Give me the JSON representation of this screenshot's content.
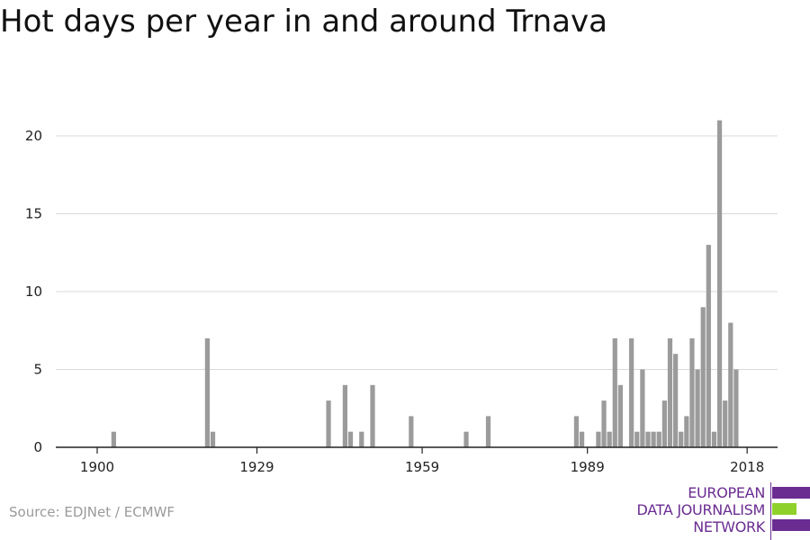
{
  "title": "Hot days per year in and around Trnava",
  "source": "Source: EDJNet / ECMWF",
  "logo": {
    "lines": [
      "EUROPEAN",
      "DATA JOURNALISM",
      "NETWORK"
    ],
    "colors": {
      "purple": "#6a2c91",
      "green": "#8fd12b"
    }
  },
  "colors": {
    "bar": "#9b9b9b",
    "grid": "#d9d9d9",
    "axis": "#222222",
    "text": "#222222"
  },
  "chart_data": {
    "type": "bar",
    "title": "Hot days per year in and around Trnava",
    "xlabel": "",
    "ylabel": "",
    "xlim": [
      1899,
      2020
    ],
    "ylim": [
      0,
      21
    ],
    "x_ticks": [
      1900,
      1929,
      1959,
      1989,
      2018
    ],
    "y_ticks": [
      0,
      5,
      10,
      15,
      20
    ],
    "grid": true,
    "years": [
      1903,
      1920,
      1921,
      1942,
      1945,
      1946,
      1948,
      1950,
      1957,
      1967,
      1971,
      1987,
      1988,
      1991,
      1992,
      1993,
      1994,
      1995,
      1997,
      1998,
      1999,
      2000,
      2001,
      2002,
      2003,
      2004,
      2005,
      2006,
      2007,
      2008,
      2009,
      2010,
      2011,
      2012,
      2013,
      2014,
      2015,
      2016,
      2017,
      2018
    ],
    "values": [
      1,
      7,
      1,
      3,
      4,
      1,
      1,
      4,
      2,
      1,
      2,
      2,
      1,
      1,
      3,
      1,
      7,
      4,
      7,
      1,
      5,
      1,
      1,
      1,
      3,
      7,
      6,
      1,
      2,
      7,
      5,
      9,
      13,
      1,
      21,
      3,
      8,
      5,
      0,
      0
    ]
  }
}
